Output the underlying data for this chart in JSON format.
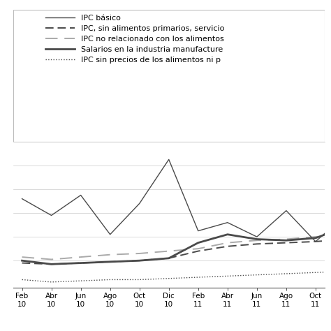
{
  "x_labels_top": [
    "Feb",
    "Abr",
    "Jun",
    "Ago",
    "Oct",
    "Dic",
    "Feb",
    "Abr",
    "Jun",
    "Ago",
    "Oct"
  ],
  "x_labels_bot": [
    "10",
    "10",
    "10",
    "10",
    "10",
    "10",
    "11",
    "11",
    "11",
    "11",
    "11"
  ],
  "ipc_basico": [
    7.2,
    5.8,
    7.5,
    4.2,
    6.8,
    10.5,
    4.5,
    5.2,
    4.0,
    6.2,
    3.6,
    5.8
  ],
  "ipc_sin_alimentos": [
    1.8,
    1.7,
    1.8,
    1.9,
    2.0,
    2.2,
    2.8,
    3.2,
    3.4,
    3.5,
    3.6,
    3.8
  ],
  "ipc_no_relacionado": [
    2.3,
    2.1,
    2.3,
    2.5,
    2.6,
    2.8,
    3.0,
    3.5,
    3.7,
    3.8,
    4.0,
    4.2
  ],
  "salarios": [
    2.0,
    1.7,
    1.8,
    1.9,
    2.0,
    2.2,
    3.5,
    4.2,
    3.8,
    3.7,
    3.9,
    4.8
  ],
  "ipc_sin_precios": [
    0.4,
    0.2,
    0.3,
    0.4,
    0.4,
    0.5,
    0.6,
    0.7,
    0.8,
    0.9,
    1.0,
    1.1
  ],
  "color_dark": "#4a4a4a",
  "color_gray": "#aaaaaa",
  "legend_labels": [
    "IPC básico",
    "IPC, sin alimentos primarios, servicio",
    "IPC no relacionado con los alimentos",
    "Salarios en la industria manufacture",
    "IPC sin precios de los alimentos ni p"
  ],
  "ylim": [
    -0.3,
    12.0
  ],
  "grid_y": [
    2,
    4,
    6,
    8,
    10
  ]
}
